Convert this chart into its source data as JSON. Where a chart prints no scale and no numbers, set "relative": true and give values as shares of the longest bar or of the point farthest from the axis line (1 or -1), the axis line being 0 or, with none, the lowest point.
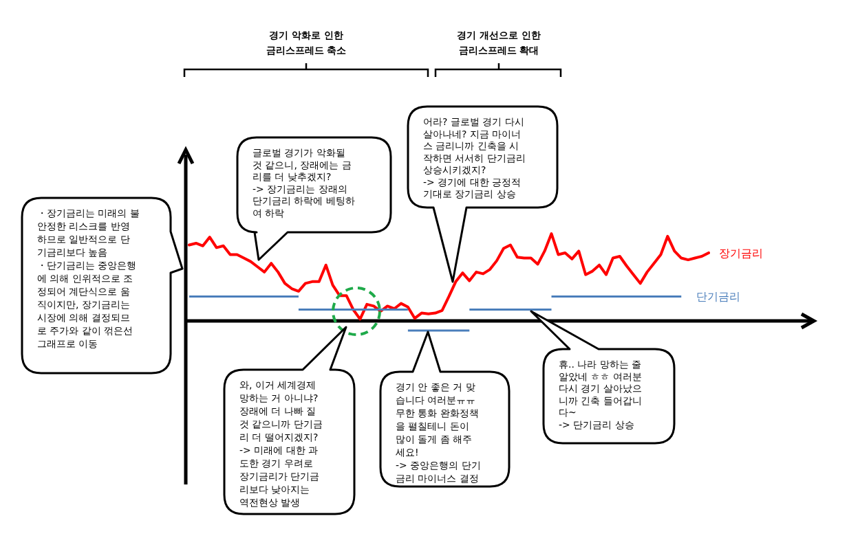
{
  "chart_data": {
    "type": "line",
    "relative": true,
    "categories": [
      null,
      null,
      null,
      null,
      null,
      null,
      null,
      null,
      null,
      null,
      null,
      null,
      null,
      null,
      null,
      null,
      null,
      null,
      null,
      null,
      null,
      null,
      null,
      null,
      null,
      null,
      null,
      null,
      null,
      null,
      null,
      null,
      null,
      null,
      null,
      null,
      null,
      null,
      null,
      null,
      null,
      null,
      null,
      null,
      null,
      null,
      null,
      null,
      null,
      null,
      null,
      null,
      null,
      null,
      null,
      null,
      null,
      null,
      null,
      null,
      null,
      null,
      null,
      null,
      null,
      null,
      null,
      null,
      null,
      null,
      null,
      null,
      null,
      null,
      null,
      null,
      null
    ],
    "series": [
      {
        "name": "장기금리",
        "color": "#ff0000",
        "type": "line",
        "values": [
          0.87,
          0.89,
          0.86,
          0.96,
          0.84,
          0.86,
          0.76,
          0.76,
          0.72,
          0.68,
          0.62,
          0.56,
          0.66,
          0.56,
          0.43,
          0.37,
          0.34,
          0.43,
          0.45,
          0.45,
          0.64,
          0.41,
          0.29,
          0.29,
          0.13,
          0.02,
          0.19,
          0.17,
          0.11,
          0.17,
          0.14,
          0.2,
          0.16,
          0.03,
          0.09,
          0.08,
          0.09,
          0.12,
          0.28,
          0.45,
          0.55,
          0.46,
          0.56,
          0.54,
          0.59,
          0.69,
          0.83,
          0.87,
          0.73,
          0.72,
          0.72,
          0.65,
          0.8,
          1.0,
          0.76,
          0.78,
          0.71,
          0.8,
          0.53,
          0.57,
          0.64,
          0.53,
          0.72,
          0.74,
          0.63,
          0.53,
          0.43,
          0.56,
          0.66,
          0.76,
          0.97,
          0.8,
          0.72,
          0.7,
          0.72,
          0.74,
          0.78
        ]
      },
      {
        "name": "단기금리",
        "color": "#4a7ebb",
        "type": "step",
        "values": [
          0.28,
          0.28,
          0.28,
          0.28,
          0.28,
          0.28,
          0.28,
          0.28,
          0.28,
          0.28,
          0.28,
          0.28,
          0.28,
          0.28,
          0.28,
          0.28,
          0.13,
          0.13,
          0.13,
          0.13,
          0.13,
          0.13,
          0.13,
          0.13,
          0.13,
          0.13,
          0.13,
          0.13,
          0.13,
          0.13,
          0.13,
          0.13,
          -0.11,
          -0.11,
          -0.11,
          -0.11,
          -0.11,
          -0.11,
          -0.11,
          -0.11,
          -0.11,
          0.13,
          0.13,
          0.13,
          0.13,
          0.13,
          0.13,
          0.13,
          0.13,
          0.13,
          0.13,
          0.13,
          0.13,
          0.28,
          0.28,
          0.28,
          0.28,
          0.28,
          0.28,
          0.28,
          0.28,
          0.28,
          0.28,
          0.28,
          0.28,
          0.28,
          0.28,
          0.28,
          0.28,
          0.28,
          0.28,
          0.28,
          0.28,
          null,
          null,
          null,
          null
        ]
      }
    ],
    "annotations": [
      "경기 악화로 인한\n금리스프레드 축소",
      "경기 개선으로 인한\n금리스프레드 확대",
      "・장기금리는 미래의 불\n안정한 리스크를 반영\n하므로 일반적으로 단\n기금리보다 높음\n・단기금리는 중앙은행\n에 의해 인위적으로 조\n정되어 계단식으로 움\n직이지만, 장기금리는\n시장에 의해 결정되므\n로 주가와 같이 꺾은선\n그래프로 이동",
      "글로벌 경기가 악화될\n것 같으니, 장래에는 금\n리를 더 낮추겠지?\n-> 장기금리는 장래의\n단기금리 하락에 베팅하\n여 하락",
      "어라? 글로벌 경기 다시\n살아나네? 지금 마이너\n스 금리니까 긴축을 시\n작하면 서서히 단기금리\n상승시키겠지?\n-> 경기에 대한 긍정적\n기대로 장기금리 상승",
      "와, 이거 세계경제\n망하는 거 아니냐?\n장래에 더 나빠 질\n것 같으니까 단기금\n리 더 떨어지겠지?\n-> 미래에 대한 과\n도한 경기 우려로\n장기금리가 단기금\n리보다 낮아지는\n역전현상 발생",
      "경기 안 좋은 거 맞\n습니다 여러분ㅠㅠ\n무한 통화 완화정책\n을 펼칠테니 돈이\n많이 돌게 좀 해주\n세요!\n-> 중앙은행의 단기\n금리 마이너스 결정",
      "휴.. 나라 망하는 줄\n알았네 ㅎㅎ 여러분\n다시 경기 살아났으\n니까 긴축 들어갑니\n다~\n-> 단기금리 상승"
    ]
  }
}
